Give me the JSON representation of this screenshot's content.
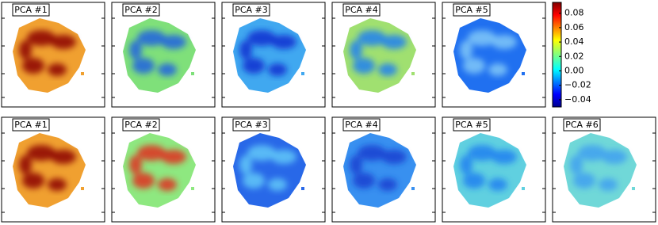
{
  "chart_data": {
    "type": "heatmap",
    "panels": [
      {
        "label": "PCA #1",
        "color": "#f0a030",
        "spot_color": "#8b0000"
      },
      {
        "label": "PCA #2",
        "color": "#7fe07a",
        "spot_color": "#2060e0"
      },
      {
        "label": "PCA #3",
        "color": "#40a8f0",
        "spot_color": "#1030d0"
      },
      {
        "label": "PCA #4",
        "color": "#a0e070",
        "spot_color": "#2080f0"
      },
      {
        "label": "PCA #5",
        "color": "#2070f0",
        "spot_color": "#80c8f8"
      },
      {
        "label": "PCA #1",
        "color": "#f0a030",
        "spot_color": "#8b0000"
      },
      {
        "label": "PCA #2",
        "color": "#8ee880",
        "spot_color": "#e03020"
      },
      {
        "label": "PCA #3",
        "color": "#2868e8",
        "spot_color": "#60c8f8"
      },
      {
        "label": "PCA #4",
        "color": "#3890f0",
        "spot_color": "#1840d0"
      },
      {
        "label": "PCA #5",
        "color": "#60d0e0",
        "spot_color": "#2080f0"
      },
      {
        "label": "PCA #6",
        "color": "#70d8d8",
        "spot_color": "#40a0f0"
      }
    ],
    "colorbar": {
      "clim": [
        -0.05,
        0.095
      ],
      "ticks": [
        0.08,
        0.06,
        0.04,
        0.02,
        {
          "value": 0,
          "label": "0.00"
        },
        {
          "value": -0.02,
          "label": "−0.02"
        },
        {
          "value": -0.04,
          "label": "−0.04"
        }
      ]
    }
  }
}
